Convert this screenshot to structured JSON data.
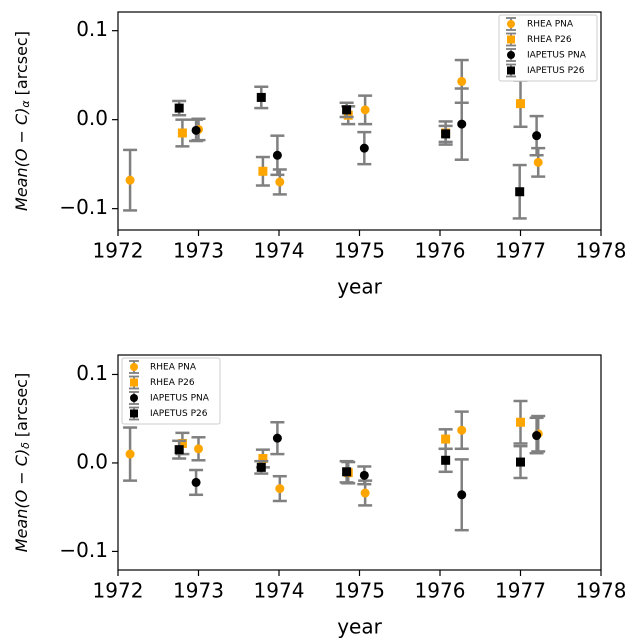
{
  "chart_data": [
    {
      "type": "errorbar",
      "ylabel": "Mean(O − C)",
      "ylabel_sub": "α",
      "ylabel_unit": "[arcsec]",
      "xlabel": "year",
      "xlim": [
        1972,
        1978
      ],
      "xticks": [
        1972,
        1973,
        1974,
        1975,
        1976,
        1977,
        1978
      ],
      "ylim": [
        -0.124,
        0.121
      ],
      "yticks": [
        {
          "value": -0.1,
          "label": "−0.1"
        },
        {
          "value": 0,
          "label": "0.0"
        },
        0.1
      ],
      "legend": "upper right",
      "error_color": "#808080",
      "series": [
        {
          "name": "RHEA PNA",
          "color": "#ffa500",
          "marker": "circle",
          "x": [
            1972.15,
            1973.0,
            1974.01,
            1975.07,
            1976.27,
            1977.22
          ],
          "values": [
            -0.068,
            -0.011,
            -0.07,
            0.011,
            0.043,
            -0.048
          ],
          "errors": [
            0.034,
            0.012,
            0.014,
            0.016,
            0.024,
            0.016
          ]
        },
        {
          "name": "RHEA P26",
          "color": "#ffa500",
          "marker": "square",
          "x": [
            1972.8,
            1973.8,
            1974.86,
            1976.07,
            1977.0
          ],
          "values": [
            -0.015,
            -0.058,
            0.005,
            -0.015,
            0.018
          ],
          "errors": [
            0.015,
            0.016,
            0.01,
            0.013,
            0.026
          ]
        },
        {
          "name": "IAPETUS PNA",
          "color": "#000000",
          "marker": "circle",
          "x": [
            1972.97,
            1973.98,
            1975.06,
            1976.27,
            1977.2
          ],
          "values": [
            -0.012,
            -0.04,
            -0.032,
            -0.005,
            -0.018
          ],
          "errors": [
            0.012,
            0.022,
            0.018,
            0.04,
            0.022
          ]
        },
        {
          "name": "IAPETUS P26",
          "color": "#000000",
          "marker": "square",
          "x": [
            1972.76,
            1973.78,
            1974.84,
            1976.07,
            1976.99
          ],
          "values": [
            0.013,
            0.025,
            0.011,
            -0.016,
            -0.081
          ],
          "errors": [
            0.008,
            0.012,
            0.008,
            0.009,
            0.03
          ]
        }
      ]
    },
    {
      "type": "errorbar",
      "ylabel": "Mean(O − C)",
      "ylabel_sub": "δ",
      "ylabel_unit": "[arcsec]",
      "xlabel": "year",
      "xlim": [
        1972,
        1978
      ],
      "xticks": [
        1972,
        1973,
        1974,
        1975,
        1976,
        1977,
        1978
      ],
      "ylim": [
        -0.121,
        0.122
      ],
      "yticks": [
        {
          "value": -0.1,
          "label": "−0.1"
        },
        {
          "value": 0,
          "label": "0.0"
        },
        0.1
      ],
      "legend": "upper left",
      "error_color": "#808080",
      "series": [
        {
          "name": "RHEA PNA",
          "color": "#ffa500",
          "marker": "circle",
          "x": [
            1972.15,
            1973.0,
            1974.01,
            1975.07,
            1976.27,
            1977.22
          ],
          "values": [
            0.01,
            0.016,
            -0.029,
            -0.034,
            0.037,
            0.033
          ],
          "errors": [
            0.03,
            0.013,
            0.014,
            0.014,
            0.021,
            0.02
          ]
        },
        {
          "name": "RHEA P26",
          "color": "#ffa500",
          "marker": "square",
          "x": [
            1972.8,
            1973.8,
            1974.86,
            1976.07,
            1977.0
          ],
          "values": [
            0.022,
            0.005,
            -0.011,
            0.027,
            0.046
          ],
          "errors": [
            0.012,
            0.01,
            0.012,
            0.011,
            0.024
          ]
        },
        {
          "name": "IAPETUS PNA",
          "color": "#000000",
          "marker": "circle",
          "x": [
            1972.97,
            1973.98,
            1975.06,
            1976.27,
            1977.2
          ],
          "values": [
            -0.022,
            0.028,
            -0.014,
            -0.036,
            0.031
          ],
          "errors": [
            0.014,
            0.018,
            0.01,
            0.04,
            0.02
          ]
        },
        {
          "name": "IAPETUS P26",
          "color": "#000000",
          "marker": "square",
          "x": [
            1972.76,
            1973.78,
            1974.84,
            1976.07,
            1977.0
          ],
          "values": [
            0.015,
            -0.005,
            -0.01,
            0.003,
            0.001
          ],
          "errors": [
            0.01,
            0.007,
            0.012,
            0.013,
            0.018
          ]
        }
      ]
    }
  ]
}
